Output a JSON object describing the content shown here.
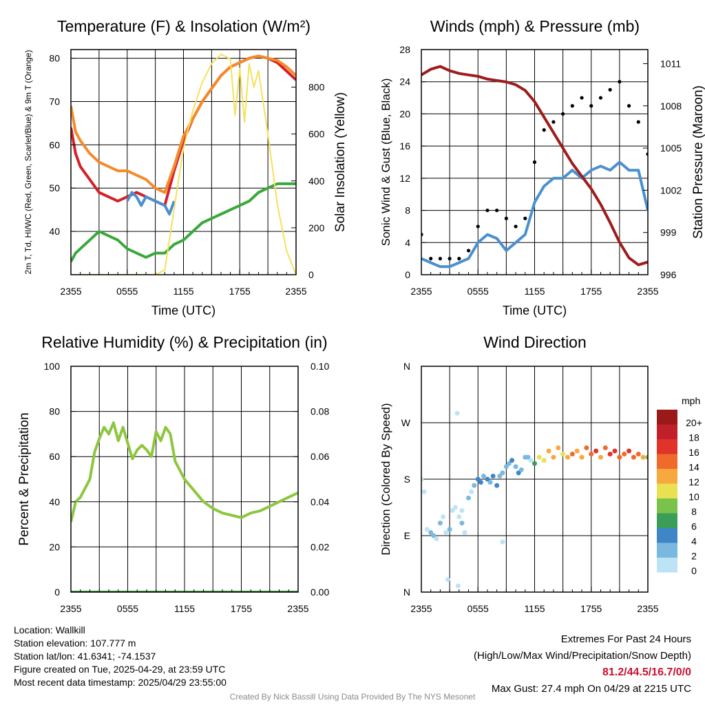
{
  "footer": {
    "location": "Location: Wallkill",
    "elevation": "Station elevation: 107.777 m",
    "latlon": "Station lat/lon: 41.6341; -74.1537",
    "created": "Figure created on Tue, 2025-04-29, at 23:59 UTC",
    "recent": "Most recent data timestamp: 2025/04/29 23:55:00",
    "extremes_title": "Extremes For Past 24 Hours",
    "extremes_sub": "(High/Low/Max Wind/Precipitation/Snow Depth)",
    "extremes_values": "81.2/44.5/16.7/0/0",
    "max_gust": "Max Gust: 27.4 mph On 04/29 at 2215 UTC",
    "credit": "Created By Nick Bassill Using Data Provided By The NYS Mesonet"
  },
  "colors": {
    "red": "#d42028",
    "orange": "#f58a2a",
    "blue": "#4a90d0",
    "green": "#3aa83a",
    "yellow": "#f6e05a",
    "maroon": "#9e1c1c",
    "black": "#000000",
    "rh": "#8dc63f",
    "precip": "#3a9e3a"
  },
  "chart_data": [
    {
      "type": "line",
      "title": "Temperature (F) & Insolation (W/m²)",
      "xlabel": "Time (UTC)",
      "ylabel": "2m T, Td, HI/WC (Red, Green, Scarlet/Blue) & 9m T (Orange)",
      "y2label": "Solar Insolation (Yellow)",
      "x_ticks": [
        "2355",
        "0555",
        "1155",
        "1755",
        "2355"
      ],
      "x_hours": [
        0,
        6,
        12,
        18,
        24
      ],
      "ylim": [
        30,
        82
      ],
      "y_ticks": [
        40,
        50,
        60,
        70,
        80
      ],
      "y2lim": [
        0,
        960
      ],
      "y2_ticks": [
        0,
        200,
        400,
        600,
        800
      ],
      "series": [
        {
          "key": "temp_2m",
          "axis": "left",
          "color": "red",
          "x": [
            0,
            0.5,
            1,
            2,
            3,
            4,
            5,
            6,
            7,
            8,
            9,
            10,
            11,
            12,
            13,
            14,
            15,
            16,
            17,
            18,
            19,
            20,
            21,
            22,
            23,
            24
          ],
          "y": [
            64,
            58,
            55,
            52,
            49,
            48,
            47,
            48,
            49,
            48,
            47,
            46,
            54,
            61,
            66,
            70,
            73,
            76,
            78,
            79,
            80,
            80.5,
            80,
            79,
            77,
            75
          ]
        },
        {
          "key": "temp_9m",
          "axis": "left",
          "color": "orange",
          "x": [
            0,
            0.5,
            1,
            2,
            3,
            4,
            5,
            6,
            7,
            8,
            9,
            10,
            11,
            12,
            13,
            14,
            15,
            16,
            17,
            18,
            19,
            20,
            21,
            22,
            23,
            24
          ],
          "y": [
            69,
            63,
            61,
            58,
            56,
            55,
            54,
            54,
            53,
            52,
            50,
            49,
            55,
            62,
            66,
            70,
            73,
            76,
            78,
            79,
            80,
            80.5,
            80,
            79.5,
            78,
            76
          ]
        },
        {
          "key": "dewpoint",
          "axis": "left",
          "color": "green",
          "x": [
            0,
            0.5,
            1,
            2,
            3,
            4,
            5,
            6,
            7,
            8,
            9,
            10,
            11,
            12,
            13,
            14,
            15,
            16,
            17,
            18,
            19,
            20,
            21,
            22,
            23,
            24
          ],
          "y": [
            33,
            35,
            36,
            38,
            40,
            39,
            38,
            36,
            35,
            34,
            35,
            35,
            37,
            38,
            40,
            42,
            43,
            44,
            45,
            46,
            47,
            49,
            50,
            51,
            51,
            51
          ]
        },
        {
          "key": "heat_index_wind_chill",
          "axis": "left",
          "color": "blue",
          "x": [
            6,
            6.5,
            7,
            7.5,
            8,
            9,
            10,
            10.5,
            11
          ],
          "y": [
            47,
            49,
            48,
            46,
            48,
            47,
            46,
            44,
            47
          ]
        },
        {
          "key": "insolation",
          "axis": "right",
          "color": "yellow",
          "x": [
            0,
            9,
            10,
            11,
            12,
            13,
            14,
            15,
            16,
            17,
            17.5,
            18,
            18.5,
            19,
            19.5,
            20,
            21,
            22,
            23,
            24
          ],
          "y": [
            0,
            0,
            20,
            280,
            540,
            700,
            820,
            900,
            940,
            920,
            680,
            880,
            650,
            900,
            800,
            870,
            600,
            300,
            100,
            0
          ]
        }
      ]
    },
    {
      "type": "line",
      "title": "Winds (mph) & Pressure (mb)",
      "xlabel": "Time (UTC)",
      "ylabel": "Sonic Wind & Gust (Blue, Black)",
      "y2label": "Station Pressure (Maroon)",
      "x_ticks": [
        "2355",
        "0555",
        "1155",
        "1755",
        "2355"
      ],
      "x_hours": [
        0,
        6,
        12,
        18,
        24
      ],
      "ylim": [
        0,
        28
      ],
      "y_ticks": [
        0,
        4,
        8,
        12,
        16,
        20,
        24,
        28
      ],
      "y2lim": [
        996,
        1012
      ],
      "y2_ticks": [
        996,
        999,
        1002,
        1005,
        1008,
        1011
      ],
      "series": [
        {
          "key": "wind",
          "axis": "left",
          "color": "blue",
          "x": [
            0,
            1,
            2,
            3,
            4,
            5,
            6,
            7,
            8,
            9,
            10,
            11,
            12,
            13,
            14,
            15,
            16,
            17,
            18,
            19,
            20,
            21,
            22,
            23,
            24
          ],
          "y": [
            2,
            1.5,
            1,
            1,
            1.5,
            2,
            4,
            5,
            4.5,
            3,
            4,
            5,
            9,
            11,
            12,
            12,
            13,
            12,
            13,
            13.5,
            13,
            14,
            13,
            13,
            8
          ]
        },
        {
          "key": "gust",
          "axis": "left",
          "color": "black",
          "x": [
            0,
            1,
            2,
            3,
            4,
            5,
            6,
            7,
            8,
            9,
            10,
            11,
            12,
            13,
            14,
            15,
            16,
            17,
            18,
            19,
            20,
            21,
            22,
            23,
            24
          ],
          "y": [
            5,
            2,
            2,
            2,
            2,
            3,
            6,
            8,
            8,
            7,
            6,
            7,
            14,
            18,
            19,
            20,
            21,
            22,
            21,
            22,
            23,
            24,
            21,
            19,
            15
          ]
        },
        {
          "key": "pressure",
          "axis": "right",
          "color": "maroon",
          "x": [
            0,
            1,
            2,
            3,
            4,
            5,
            6,
            7,
            8,
            9,
            10,
            11,
            12,
            13,
            14,
            15,
            16,
            17,
            18,
            19,
            20,
            21,
            22,
            23,
            24
          ],
          "y": [
            1010.2,
            1010.6,
            1010.8,
            1010.5,
            1010.3,
            1010.2,
            1010.1,
            1009.9,
            1009.8,
            1009.7,
            1009.5,
            1009.1,
            1008.3,
            1007.2,
            1006.1,
            1005.0,
            1003.9,
            1003.0,
            1002.1,
            1001.0,
            999.7,
            998.3,
            997.2,
            996.7,
            996.9
          ]
        }
      ]
    },
    {
      "type": "line",
      "title": "Relative Humidity (%) & Precipitation (in)",
      "ylabel": "Percent & Precipitation",
      "x_ticks": [
        "2355",
        "0555",
        "1155",
        "1755",
        "2355"
      ],
      "x_hours": [
        0,
        6,
        12,
        18,
        24
      ],
      "ylim": [
        0,
        100
      ],
      "y_ticks": [
        0,
        20,
        40,
        60,
        80,
        100
      ],
      "y2lim": [
        0,
        0.1
      ],
      "y2_ticks": [
        "0.00",
        "0.02",
        "0.04",
        "0.06",
        "0.08",
        "0.10"
      ],
      "series": [
        {
          "key": "rh",
          "axis": "left",
          "color": "rh",
          "x": [
            0,
            0.5,
            1,
            2,
            2.5,
            3,
            3.5,
            4,
            4.5,
            5,
            5.5,
            6,
            6.5,
            7,
            7.5,
            8,
            8.5,
            9,
            9.5,
            10,
            10.5,
            11,
            12,
            13,
            14,
            15,
            16,
            17,
            18,
            19,
            20,
            21,
            22,
            23,
            24
          ],
          "y": [
            31,
            40,
            42,
            50,
            62,
            68,
            73,
            70,
            75,
            67,
            73,
            66,
            59,
            63,
            65,
            63,
            60,
            71,
            67,
            73,
            70,
            58,
            50,
            45,
            40,
            37,
            35,
            34,
            33,
            35,
            36,
            38,
            40,
            42,
            44
          ]
        },
        {
          "key": "precipitation",
          "axis": "right",
          "color": "precip",
          "x": [
            0,
            24
          ],
          "y": [
            0,
            0
          ]
        }
      ]
    },
    {
      "type": "scatter",
      "title": "Wind Direction",
      "ylabel": "Direction (Colored By Speed)",
      "x_ticks": [
        "2355",
        "0555",
        "1155",
        "1755",
        "2355"
      ],
      "x_hours": [
        0,
        6,
        12,
        18,
        24
      ],
      "y_ticks": [
        "N",
        "E",
        "S",
        "W",
        "N"
      ],
      "ylim": [
        0,
        360
      ],
      "legend_title": "mph",
      "legend_labels": [
        "0",
        "2",
        "4",
        "6",
        "8",
        "10",
        "12",
        "14",
        "16",
        "18",
        "20+"
      ],
      "legend_colors": [
        "#bde4f4",
        "#7ab8e0",
        "#3f86c6",
        "#3b9e58",
        "#79c34a",
        "#e8e252",
        "#f7a83e",
        "#f06a2a",
        "#e0332a",
        "#c0202a",
        "#9a1a1a"
      ],
      "points": {
        "x": [
          0,
          0.3,
          0.6,
          1,
          1.3,
          1.6,
          2,
          2.3,
          2.6,
          3,
          3.3,
          3.6,
          4,
          4.3,
          4.6,
          5,
          5.3,
          5.6,
          6,
          6.3,
          6.6,
          7,
          7.3,
          7.6,
          8,
          8.3,
          8.6,
          9,
          9.3,
          9.6,
          10,
          10.3,
          10.6,
          11,
          11.3,
          11.6,
          12,
          12.5,
          13,
          13.5,
          14,
          14.5,
          15,
          15.5,
          16,
          16.5,
          17,
          17.5,
          18,
          18.5,
          19,
          19.5,
          20,
          20.5,
          21,
          21.5,
          22,
          22.5,
          23,
          23.5,
          24,
          3.8,
          3.9,
          2.8,
          4.3,
          8.6
        ],
        "y": [
          180,
          160,
          100,
          95,
          90,
          85,
          110,
          120,
          95,
          100,
          130,
          135,
          120,
          110,
          95,
          150,
          160,
          170,
          180,
          175,
          185,
          180,
          175,
          185,
          170,
          185,
          190,
          200,
          205,
          210,
          200,
          190,
          195,
          215,
          215,
          210,
          205,
          215,
          210,
          225,
          215,
          230,
          220,
          215,
          220,
          225,
          215,
          230,
          220,
          225,
          215,
          230,
          220,
          225,
          215,
          220,
          225,
          215,
          220,
          215,
          215,
          285,
          10,
          20,
          130,
          80
        ],
        "speed": [
          1,
          0.5,
          1.5,
          2,
          3,
          1,
          2,
          0.5,
          1,
          2,
          1.5,
          0.5,
          1,
          2,
          1.5,
          2,
          1,
          3,
          4,
          5,
          3,
          4,
          3,
          5,
          4,
          3,
          2,
          3,
          2,
          4,
          3,
          4,
          3,
          2,
          3,
          1,
          7,
          10,
          11,
          12,
          13,
          12,
          11,
          13,
          14,
          12,
          13,
          15,
          14,
          16,
          13,
          15,
          17,
          16,
          14,
          15,
          17,
          15,
          14,
          13,
          8,
          0.3,
          0.4,
          1,
          0.5,
          0.8
        ]
      }
    }
  ]
}
